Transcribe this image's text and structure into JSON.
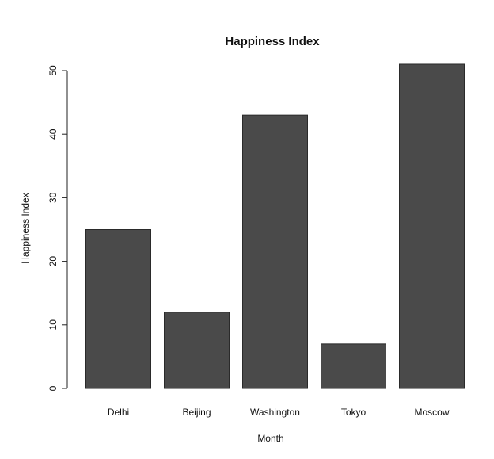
{
  "chart_data": {
    "type": "bar",
    "title": "Happiness Index",
    "xlabel": "Month",
    "ylabel": "Happiness Index",
    "categories": [
      "Delhi",
      "Beijing",
      "Washington",
      "Tokyo",
      "Moscow"
    ],
    "values": [
      25,
      12,
      43,
      7,
      51
    ],
    "ylim": [
      0,
      50
    ],
    "yticks": [
      "0",
      "10",
      "20",
      "30",
      "40",
      "50"
    ],
    "grid": false,
    "bar_color": "#4a4a4a"
  }
}
